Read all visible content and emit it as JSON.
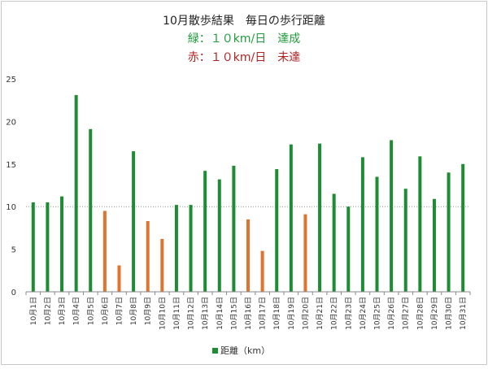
{
  "chart_data": {
    "type": "bar",
    "title": "10月散歩結果　毎日の歩行距離",
    "subtitle_lines": [
      {
        "text": "緑：１０km/日　達成",
        "color": "#1e9c3a"
      },
      {
        "text": "赤：１０km/日　未達",
        "color": "#b22222"
      }
    ],
    "categories": [
      "10月1日",
      "10月2日",
      "10月3日",
      "10月4日",
      "10月5日",
      "10月6日",
      "10月7日",
      "10月8日",
      "10月9日",
      "10月10日",
      "10月11日",
      "10月12日",
      "10月13日",
      "10月14日",
      "10月15日",
      "10月16日",
      "10月17日",
      "10月18日",
      "10月19日",
      "10月20日",
      "10月21日",
      "10月22日",
      "10月23日",
      "10月24日",
      "10月25日",
      "10月26日",
      "10月27日",
      "10月28日",
      "10月29日",
      "10月30日",
      "10月31日"
    ],
    "series": [
      {
        "name": "距離（km）",
        "values": [
          10.5,
          10.5,
          11.2,
          23.1,
          19.1,
          9.5,
          3.1,
          16.5,
          8.3,
          6.2,
          10.2,
          10.2,
          14.2,
          13.2,
          14.8,
          8.5,
          4.8,
          14.4,
          17.3,
          9.1,
          17.4,
          11.5,
          10.0,
          15.8,
          13.5,
          17.8,
          12.1,
          15.9,
          10.9,
          14.0,
          15.0
        ]
      }
    ],
    "colors": {
      "achieved": "#1e8c32",
      "not_achieved": "#e0732e",
      "threshold_line": "#9a9a9a"
    },
    "ylim": [
      0,
      25
    ],
    "yticks": [
      0,
      5,
      10,
      15,
      20,
      25
    ],
    "threshold": 10,
    "legend_position": "bottom",
    "grid": false
  }
}
